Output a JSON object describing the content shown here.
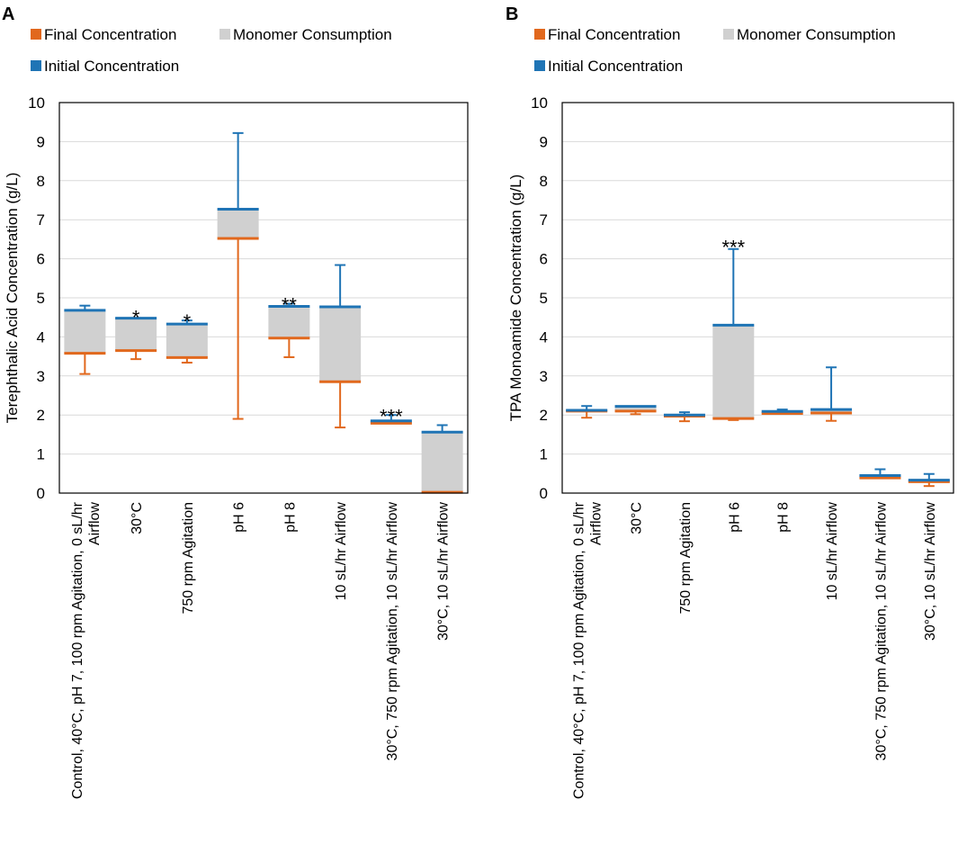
{
  "legend": [
    {
      "key": "final",
      "label": "Final Concentration",
      "color": "#E1681D"
    },
    {
      "key": "consumption",
      "label": "Monomer Consumption",
      "color": "#D0D0D0"
    },
    {
      "key": "initial",
      "label": "Initial Concentration",
      "color": "#1F74B5"
    }
  ],
  "colors": {
    "final": "#E1681D",
    "consumption": "#D0D0D0",
    "initial": "#1F74B5",
    "grid": "#D9D9D9",
    "axis": "#000000"
  },
  "chart_data": [
    {
      "panel_label": "A",
      "type": "bar",
      "subtype": "floating-range",
      "title": "",
      "xlabel": "",
      "ylabel": "Terephthalic Acid Concentration (g/L)",
      "ylim": [
        0,
        10
      ],
      "yticks": [
        0,
        1,
        2,
        3,
        4,
        5,
        6,
        7,
        8,
        9,
        10
      ],
      "grid": true,
      "legend_position": "top",
      "categories": [
        [
          "Control, 40°C, pH 7, 100 rpm Agitation, 0 sL/hr",
          "Airflow"
        ],
        [
          "30°C"
        ],
        [
          "750 rpm Agitation"
        ],
        [
          "pH 6"
        ],
        [
          "pH 8"
        ],
        [
          "10 sL/hr Airflow"
        ],
        [
          "30°C, 750 rpm Agitation, 10 sL/hr Airflow"
        ],
        [
          "30°C, 10 sL/hr Airflow"
        ]
      ],
      "series": [
        {
          "name": "Initial Concentration",
          "values": [
            4.68,
            4.48,
            4.33,
            7.27,
            4.78,
            4.77,
            1.85,
            1.56
          ],
          "err": [
            0.12,
            0.0,
            0.09,
            1.95,
            0.07,
            1.07,
            0.15,
            0.18
          ],
          "err_dir": "up"
        },
        {
          "name": "Final Concentration",
          "values": [
            3.58,
            3.65,
            3.47,
            6.52,
            3.97,
            2.85,
            1.79,
            0.02
          ],
          "err": [
            0.53,
            0.22,
            0.13,
            4.62,
            0.49,
            1.17,
            0.0,
            0.0
          ],
          "err_dir": "down"
        },
        {
          "name": "Monomer Consumption",
          "derived": "initial - final"
        }
      ],
      "annotations": [
        {
          "category_index": 1,
          "text": "*",
          "y": 4.55
        },
        {
          "category_index": 2,
          "text": "*",
          "y": 4.45
        },
        {
          "category_index": 4,
          "text": "**",
          "y": 4.87
        },
        {
          "category_index": 6,
          "text": "***",
          "y": 2.02
        }
      ]
    },
    {
      "panel_label": "B",
      "type": "bar",
      "subtype": "floating-range",
      "title": "",
      "xlabel": "",
      "ylabel": "TPA Monoamide Concentration (g/L)",
      "ylim": [
        0,
        10
      ],
      "yticks": [
        0,
        1,
        2,
        3,
        4,
        5,
        6,
        7,
        8,
        9,
        10
      ],
      "grid": true,
      "legend_position": "top",
      "categories": [
        [
          "Control, 40°C, pH 7, 100 rpm Agitation, 0 sL/hr",
          "Airflow"
        ],
        [
          "30°C"
        ],
        [
          "750 rpm Agitation"
        ],
        [
          "pH 6"
        ],
        [
          "pH 8"
        ],
        [
          "10 sL/hr Airflow"
        ],
        [
          "30°C, 750 rpm Agitation, 10 sL/hr Airflow"
        ],
        [
          "30°C, 10 sL/hr Airflow"
        ]
      ],
      "series": [
        {
          "name": "Initial Concentration",
          "values": [
            2.12,
            2.22,
            2.0,
            4.3,
            2.09,
            2.14,
            0.45,
            0.33
          ],
          "err": [
            0.11,
            0.0,
            0.07,
            1.95,
            0.05,
            1.08,
            0.16,
            0.16
          ],
          "err_dir": "up"
        },
        {
          "name": "Final Concentration",
          "values": [
            2.1,
            2.1,
            1.97,
            1.91,
            2.04,
            2.05,
            0.39,
            0.29
          ],
          "err": [
            0.17,
            0.08,
            0.13,
            0.04,
            0.0,
            0.2,
            0.0,
            0.11
          ],
          "err_dir": "down"
        },
        {
          "name": "Monomer Consumption",
          "derived": "initial - final"
        }
      ],
      "annotations": [
        {
          "category_index": 3,
          "text": "***",
          "y": 6.35
        }
      ]
    }
  ]
}
